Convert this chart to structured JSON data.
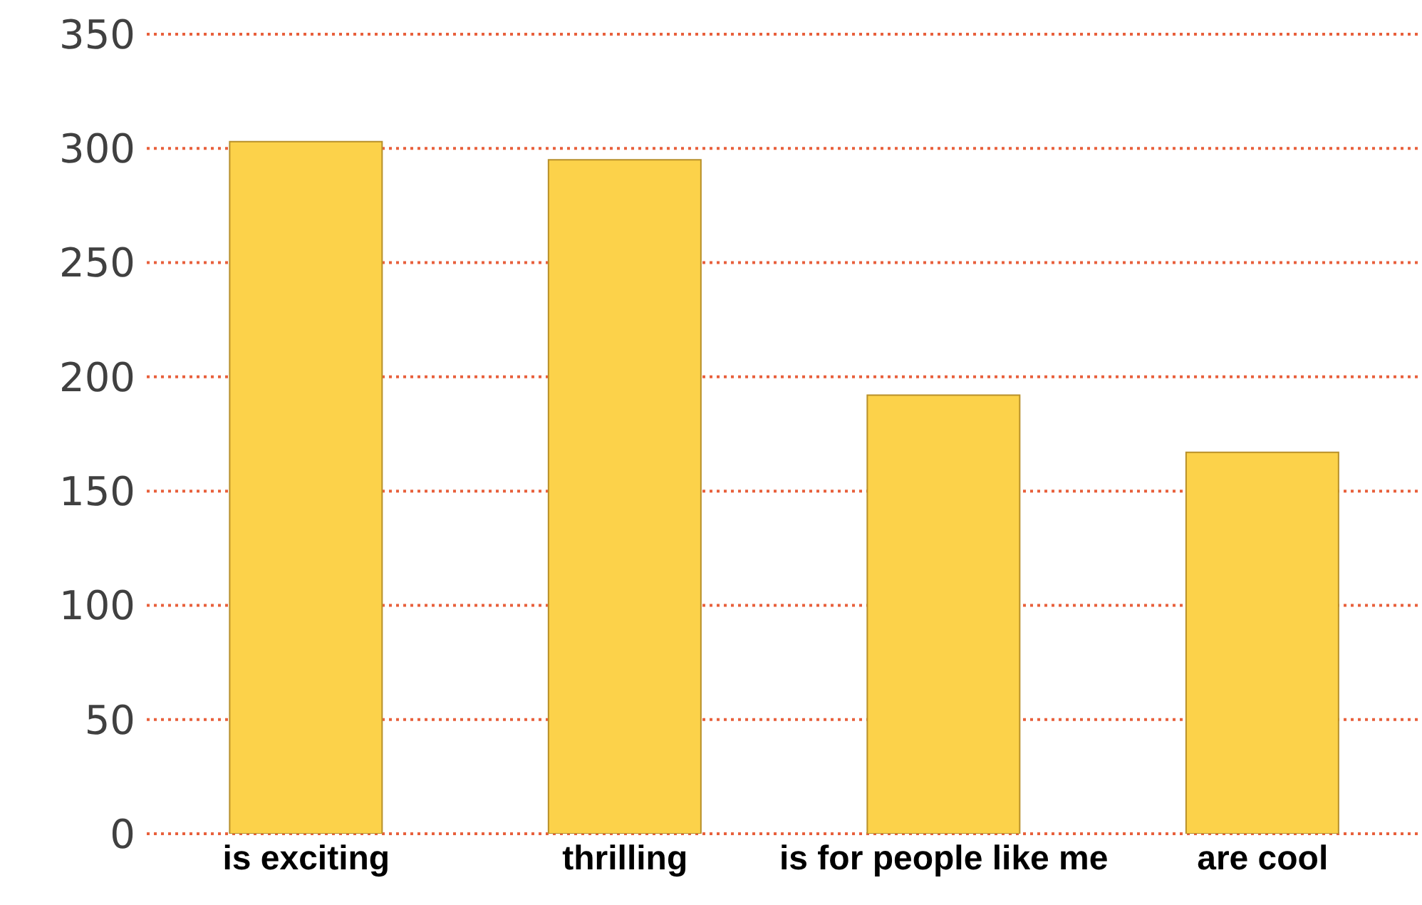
{
  "chart_data": {
    "type": "bar",
    "categories": [
      "is exciting",
      "thrilling",
      "is for people like me",
      "are cool"
    ],
    "values": [
      303,
      295,
      192,
      167
    ],
    "color": "#fcd24a",
    "ylim": [
      0,
      350
    ],
    "yticks": [
      0,
      50,
      100,
      150,
      200,
      250,
      300,
      350
    ],
    "grid": "y"
  }
}
